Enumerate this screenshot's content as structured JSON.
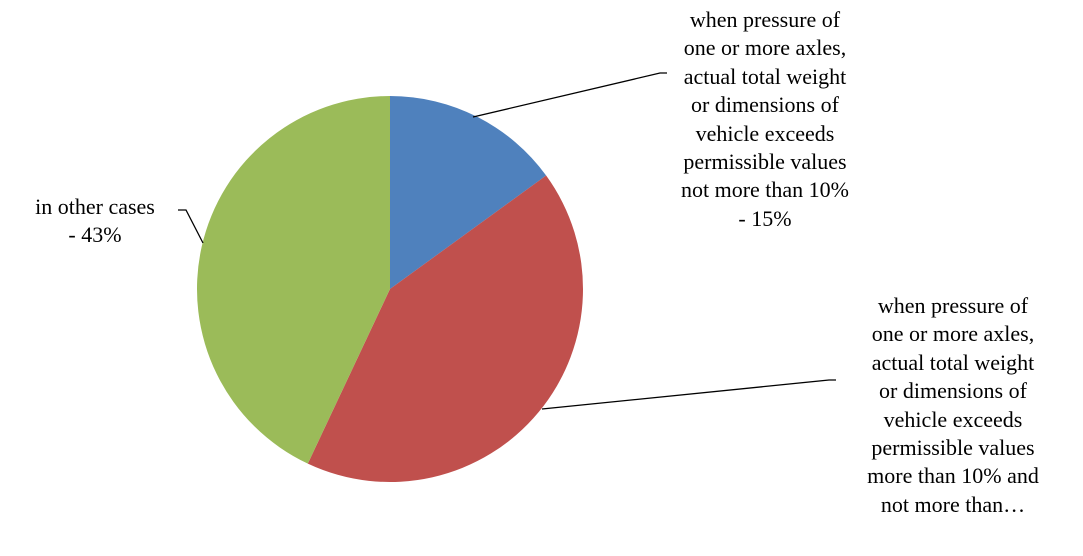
{
  "chart_data": {
    "type": "pie",
    "start_angle_deg": 0,
    "direction": "clockwise",
    "slices": [
      {
        "value": 15,
        "color": "#4f81bd",
        "label_lines": [
          "when pressure of",
          "one or more axles,",
          "actual total weight",
          "or dimensions of",
          "vehicle exceeds",
          "permissible values",
          "not more than 10%",
          "- 15%"
        ]
      },
      {
        "value": 42,
        "color": "#c0504d",
        "label_lines": [
          "when pressure of",
          "one or more axles,",
          "actual total weight",
          "or dimensions of",
          "vehicle exceeds",
          "permissible values",
          "more than 10% and",
          "not more than…"
        ]
      },
      {
        "value": 43,
        "color": "#9bbb59",
        "label_lines": [
          "in other cases",
          "- 43%"
        ]
      }
    ]
  }
}
